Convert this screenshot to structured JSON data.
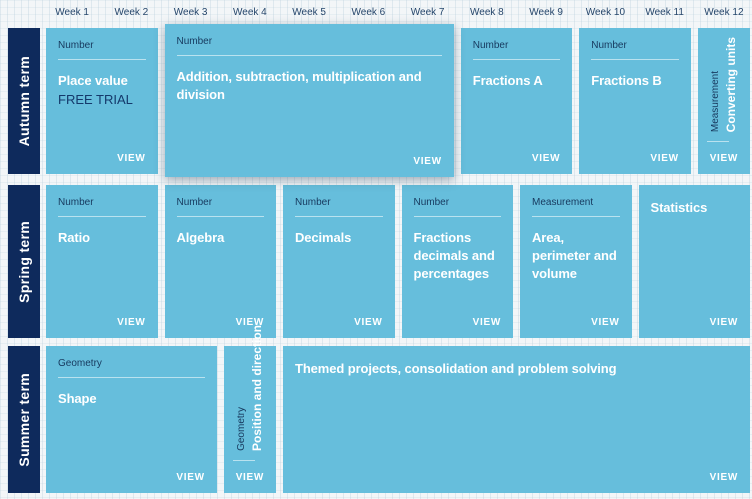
{
  "colors": {
    "card_blue": "#66bedc",
    "navy": "#0e2a5c",
    "page_bg": "#f3f6f8"
  },
  "labels": {
    "view": "VIEW"
  },
  "week_header": {
    "labels": [
      "Week 1",
      "Week 2",
      "Week 3",
      "Week 4",
      "Week 5",
      "Week 6",
      "Week 7",
      "Week 8",
      "Week 9",
      "Week 10",
      "Week 11",
      "Week 12"
    ]
  },
  "terms": [
    {
      "label": "Autumn term",
      "cards": [
        {
          "category": "Number",
          "title": "Place value",
          "subtitle": "FREE TRIAL"
        },
        {
          "category": "Number",
          "title": "Addition, subtraction, multiplication and division"
        },
        {
          "category": "Number",
          "title": "Fractions A"
        },
        {
          "category": "Number",
          "title": "Fractions B"
        },
        {
          "category": "Measurement",
          "title": "Converting units"
        }
      ]
    },
    {
      "label": "Spring term",
      "cards": [
        {
          "category": "Number",
          "title": "Ratio"
        },
        {
          "category": "Number",
          "title": "Algebra"
        },
        {
          "category": "Number",
          "title": "Decimals"
        },
        {
          "category": "Number",
          "title": "Fractions decimals and percentages"
        },
        {
          "category": "Measurement",
          "title": "Area, perimeter and volume"
        },
        {
          "title": "Statistics"
        }
      ]
    },
    {
      "label": "Summer term",
      "cards": [
        {
          "category": "Geometry",
          "title": "Shape"
        },
        {
          "category": "Geometry",
          "title": "Position and direction"
        },
        {
          "title": "Themed projects, consolidation and problem solving"
        }
      ]
    }
  ]
}
